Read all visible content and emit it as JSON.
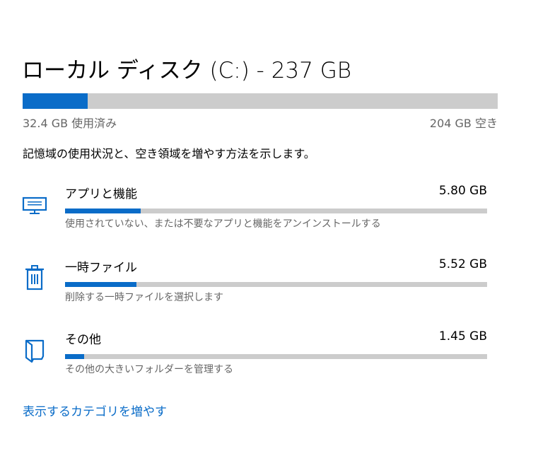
{
  "title": "ローカル ディスク (C:) - 237 GB",
  "disk": {
    "used_label": "32.4 GB 使用済み",
    "free_label": "204 GB 空き",
    "used_percent": 13.7
  },
  "description": "記憶域の使用状況と、空き領域を増やす方法を示します。",
  "accent_color": "#0a6cc8",
  "categories": [
    {
      "icon": "monitor-keyboard-icon",
      "name": "アプリと機能",
      "size": "5.80 GB",
      "percent": 18,
      "sub": "使用されていない、または不要なアプリと機能をアンインストールする"
    },
    {
      "icon": "trash-icon",
      "name": "一時ファイル",
      "size": "5.52 GB",
      "percent": 17,
      "sub": "削除する一時ファイルを選択します"
    },
    {
      "icon": "folder-icon",
      "name": "その他",
      "size": "1.45 GB",
      "percent": 4.5,
      "sub": "その他の大きいフォルダーを管理する"
    }
  ],
  "more_link": "表示するカテゴリを増やす"
}
